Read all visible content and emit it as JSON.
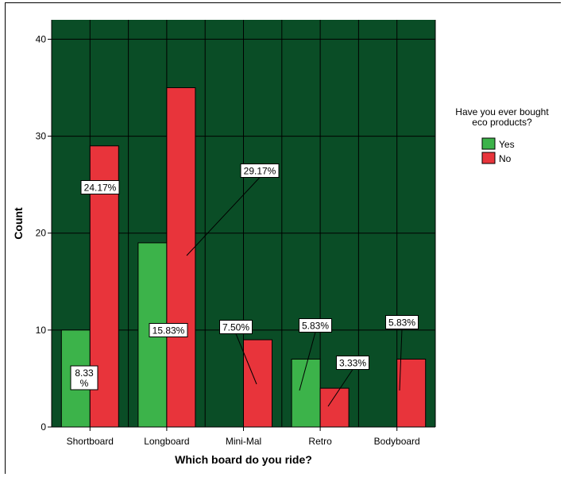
{
  "chart_data": {
    "type": "bar",
    "title": "",
    "xlabel": "Which board do you ride?",
    "ylabel": "Count",
    "categories": [
      "Shortboard",
      "Longboard",
      "Mini-Mal",
      "Retro",
      "Bodyboard"
    ],
    "series": [
      {
        "name": "Yes",
        "color": "#3cb34a",
        "values": [
          10,
          19,
          0,
          7,
          0
        ]
      },
      {
        "name": "No",
        "color": "#e8343b",
        "values": [
          29,
          35,
          9,
          4,
          7
        ]
      }
    ],
    "data_labels": [
      {
        "category": "Shortboard",
        "series": "Yes",
        "text": "8.33\n%"
      },
      {
        "category": "Shortboard",
        "series": "No",
        "text": "24.17%"
      },
      {
        "category": "Longboard",
        "series": "Yes",
        "text": "15.83%"
      },
      {
        "category": "Longboard",
        "series": "No",
        "text": "29.17%"
      },
      {
        "category": "Mini-Mal",
        "series": "No",
        "text": "7.50%"
      },
      {
        "category": "Retro",
        "series": "Yes",
        "text": "5.83%"
      },
      {
        "category": "Retro",
        "series": "No",
        "text": "3.33%"
      },
      {
        "category": "Bodyboard",
        "series": "No",
        "text": "5.83%"
      }
    ],
    "ylim": [
      0,
      42
    ],
    "yticks": [
      0,
      10,
      20,
      30,
      40
    ],
    "grid": true,
    "plot_background": "#0a4d26",
    "grid_color": "#000000",
    "legend": {
      "title": "Have you ever bought\neco products?",
      "placement": "right",
      "entries": [
        "Yes",
        "No"
      ]
    }
  }
}
